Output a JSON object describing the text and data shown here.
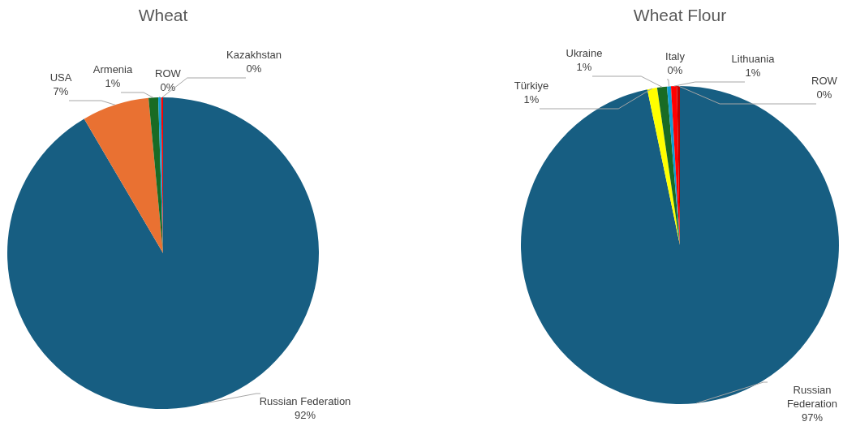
{
  "chart_data": [
    {
      "type": "pie",
      "title": "Wheat",
      "categories": [
        "Russian Federation",
        "USA",
        "Armenia",
        "ROW",
        "Kazakhstan"
      ],
      "values": [
        92,
        7,
        1,
        0.3,
        0.2
      ],
      "value_labels": [
        "92%",
        "7%",
        "1%",
        "0%",
        "0%"
      ],
      "colors": [
        "#175e82",
        "#e97132",
        "#196b24",
        "#0f9ed5",
        "#ff0000"
      ]
    },
    {
      "type": "pie",
      "title": "Wheat Flour",
      "categories": [
        "Russian Federation",
        "Türkiye",
        "Ukraine",
        "Italy",
        "Lithuania",
        "ROW"
      ],
      "values": [
        97,
        1,
        1,
        0.4,
        0.6,
        0.3
      ],
      "value_labels": [
        "97%",
        "1%",
        "1%",
        "0%",
        "1%",
        "0%"
      ],
      "colors": [
        "#175e82",
        "#ffff00",
        "#196b24",
        "#0f9ed5",
        "#ff0000",
        "#c00000"
      ]
    }
  ]
}
